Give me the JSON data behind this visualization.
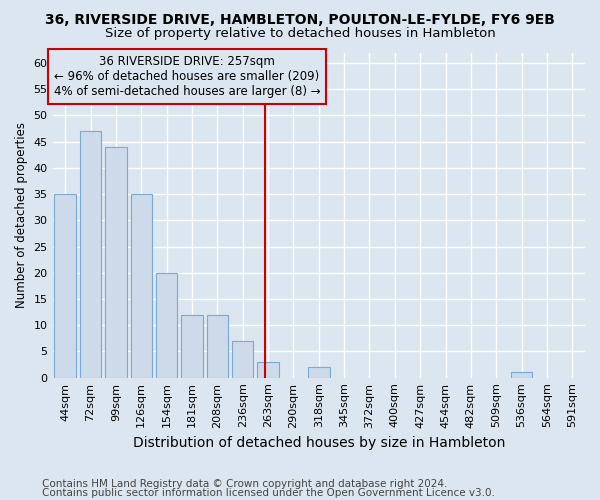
{
  "title": "36, RIVERSIDE DRIVE, HAMBLETON, POULTON-LE-FYLDE, FY6 9EB",
  "subtitle": "Size of property relative to detached houses in Hambleton",
  "xlabel": "Distribution of detached houses by size in Hambleton",
  "ylabel": "Number of detached properties",
  "categories": [
    "44sqm",
    "72sqm",
    "99sqm",
    "126sqm",
    "154sqm",
    "181sqm",
    "208sqm",
    "236sqm",
    "263sqm",
    "290sqm",
    "318sqm",
    "345sqm",
    "372sqm",
    "400sqm",
    "427sqm",
    "454sqm",
    "482sqm",
    "509sqm",
    "536sqm",
    "564sqm",
    "591sqm"
  ],
  "values": [
    35,
    47,
    44,
    35,
    20,
    12,
    12,
    7,
    3,
    0,
    2,
    0,
    0,
    0,
    0,
    0,
    0,
    0,
    1,
    0,
    0
  ],
  "bar_color": "#cddaea",
  "bar_edge_color": "#7aaacf",
  "ylim": [
    0,
    62
  ],
  "yticks": [
    0,
    5,
    10,
    15,
    20,
    25,
    30,
    35,
    40,
    45,
    50,
    55,
    60
  ],
  "property_line_label": "36 RIVERSIDE DRIVE: 257sqm",
  "annotation_line1": "← 96% of detached houses are smaller (209)",
  "annotation_line2": "4% of semi-detached houses are larger (8) →",
  "annotation_box_color": "#cc0000",
  "vline_color": "#cc0000",
  "vline_bar_index": 7.89,
  "footer1": "Contains HM Land Registry data © Crown copyright and database right 2024.",
  "footer2": "Contains public sector information licensed under the Open Government Licence v3.0.",
  "bg_color": "#dce6f0",
  "grid_color": "#ffffff",
  "title_fontsize": 10,
  "subtitle_fontsize": 9.5,
  "xlabel_fontsize": 10,
  "ylabel_fontsize": 8.5,
  "tick_fontsize": 8,
  "annotation_fontsize": 8.5,
  "footer_fontsize": 7.5
}
